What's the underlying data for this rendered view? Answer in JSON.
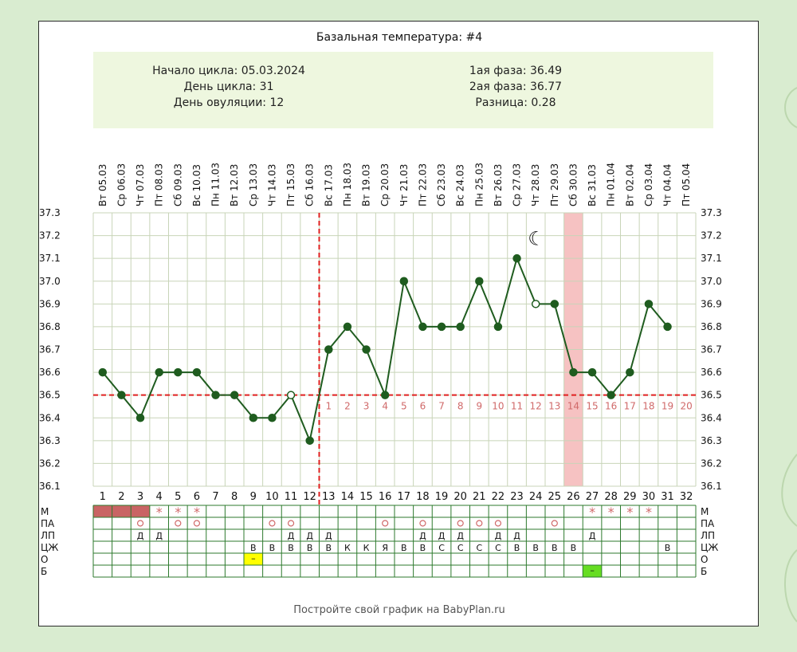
{
  "colors": {
    "page_bg": "#d9ecd0",
    "card_bg": "#ffffff",
    "info_bg": "#eef7df",
    "grid": "#c8d4b8",
    "line": "#1f5c1f",
    "ref_line": "#e02020",
    "highlight_col": "#f6c2c2",
    "phase_label": "#d06a6a",
    "table_border": "#2d7a2d",
    "period_cell": "#c96464",
    "pain_yellow": "#ffff00",
    "pain_green": "#66dd22"
  },
  "chart_data": {
    "type": "line",
    "title": "Базальная температура: #4",
    "info": {
      "left": [
        "Начало цикла: 05.03.2024",
        "День цикла: 31",
        "День овуляции: 12"
      ],
      "right": [
        "1ая фаза: 36.49",
        "2ая фаза: 36.77",
        "Разница: 0.28"
      ]
    },
    "days": [
      1,
      2,
      3,
      4,
      5,
      6,
      7,
      8,
      9,
      10,
      11,
      12,
      13,
      14,
      15,
      16,
      17,
      18,
      19,
      20,
      21,
      22,
      23,
      24,
      25,
      26,
      27,
      28,
      29,
      30,
      31,
      32
    ],
    "dates": [
      "Вт 05.03",
      "Ср 06.03",
      "Чт 07.03",
      "Пт 08.03",
      "Сб 09.03",
      "Вс 10.03",
      "Пн 11.03",
      "Вт 12.03",
      "Ср 13.03",
      "Чт 14.03",
      "Пт 15.03",
      "Сб 16.03",
      "Вс 17.03",
      "Пн 18.03",
      "Вт 19.03",
      "Ср 20.03",
      "Чт 21.03",
      "Пт 22.03",
      "Сб 23.03",
      "Вс 24.03",
      "Пн 25.03",
      "Вт 26.03",
      "Ср 27.03",
      "Чт 28.03",
      "Пт 29.03",
      "Сб 30.03",
      "Вс 31.03",
      "Пн 01.04",
      "Вт 02.04",
      "Ср 03.04",
      "Чт 04.04",
      "Пт 05.04"
    ],
    "temperatures": [
      36.6,
      36.5,
      36.4,
      36.6,
      36.6,
      36.6,
      36.5,
      36.5,
      36.4,
      36.4,
      36.5,
      36.3,
      36.7,
      36.8,
      36.7,
      36.5,
      37.0,
      36.8,
      36.8,
      36.8,
      37.0,
      36.8,
      37.1,
      36.9,
      36.9,
      36.6,
      36.6,
      36.5,
      36.6,
      36.9,
      36.8,
      null
    ],
    "hollow_points": [
      11,
      24
    ],
    "ylim": [
      36.1,
      37.3
    ],
    "y_ticks": [
      "36.1",
      "36.2",
      "36.3",
      "36.4",
      "36.5",
      "36.6",
      "36.7",
      "36.8",
      "36.9",
      "37.0",
      "37.1",
      "37.2",
      "37.3"
    ],
    "coverline": 36.5,
    "ovulation_day": 12,
    "phase_labels": [
      "1",
      "2",
      "3",
      "4",
      "5",
      "6",
      "7",
      "8",
      "9",
      "10",
      "11",
      "12",
      "13",
      "14",
      "15",
      "16",
      "17",
      "18",
      "19",
      "20"
    ],
    "highlight_day": 26,
    "moon_icon_day": 24,
    "moon_icon_temp": 37.2,
    "moon_glyph": "☾",
    "grid": true
  },
  "table": {
    "row_labels": [
      "М",
      "ПА",
      "ЛП",
      "ЦЖ",
      "О",
      "Б"
    ],
    "m_filled_days": [
      1,
      2,
      3
    ],
    "m_star_days": [
      4,
      5,
      6,
      27,
      28,
      29,
      30
    ],
    "m_star_symbol": "*",
    "pa_circle_days": [
      3,
      5,
      6,
      10,
      11,
      16,
      18,
      20,
      21,
      22,
      25
    ],
    "pa_symbol": "o",
    "lp_days": [
      3,
      4,
      11,
      12,
      13,
      18,
      19,
      20,
      22,
      23,
      27
    ],
    "lp_symbol": "Д",
    "cj_values": {
      "9": "В",
      "10": "В",
      "11": "В",
      "12": "В",
      "13": "В",
      "14": "К",
      "15": "К",
      "16": "Я",
      "17": "В",
      "18": "В",
      "19": "С",
      "20": "С",
      "21": "С",
      "22": "С",
      "23": "В",
      "24": "В",
      "25": "В",
      "26": "В",
      "31": "В"
    },
    "o_day": 9,
    "o_symbol": "–",
    "b_day": 27,
    "b_symbol": "–"
  },
  "footer": "Постройте свой график на BabyPlan.ru"
}
